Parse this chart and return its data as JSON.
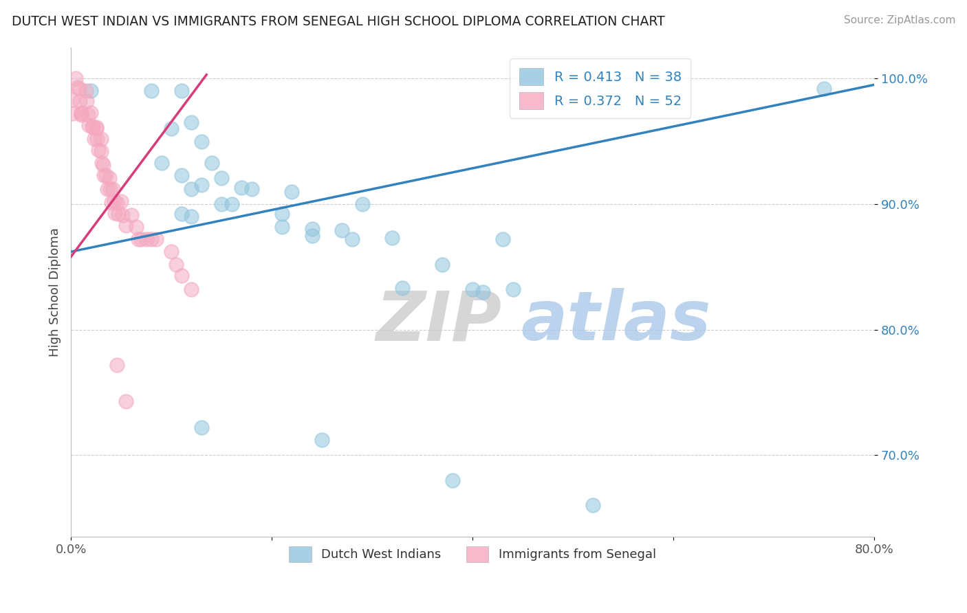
{
  "title": "DUTCH WEST INDIAN VS IMMIGRANTS FROM SENEGAL HIGH SCHOOL DIPLOMA CORRELATION CHART",
  "source": "Source: ZipAtlas.com",
  "xlabel": "",
  "ylabel": "High School Diploma",
  "xlim": [
    0.0,
    0.8
  ],
  "ylim": [
    0.635,
    1.025
  ],
  "xticks": [
    0.0,
    0.2,
    0.4,
    0.6,
    0.8
  ],
  "xticklabels": [
    "0.0%",
    "",
    "",
    "",
    "80.0%"
  ],
  "yticks": [
    0.7,
    0.8,
    0.9,
    1.0
  ],
  "yticklabels": [
    "70.0%",
    "80.0%",
    "90.0%",
    "100.0%"
  ],
  "blue_R": 0.413,
  "blue_N": 38,
  "pink_R": 0.372,
  "pink_N": 52,
  "blue_color": "#92c5de",
  "pink_color": "#f4a9c0",
  "blue_line_color": "#3182bd",
  "pink_line_color": "#d63b7a",
  "background_color": "#ffffff",
  "grid_color": "#cccccc",
  "legend_label_blue": "Dutch West Indians",
  "legend_label_pink": "Immigrants from Senegal",
  "watermark_zip": "ZIP",
  "watermark_atlas": "atlas",
  "blue_scatter_x": [
    0.02,
    0.08,
    0.1,
    0.11,
    0.12,
    0.13,
    0.09,
    0.11,
    0.12,
    0.14,
    0.15,
    0.15,
    0.17,
    0.11,
    0.12,
    0.13,
    0.16,
    0.18,
    0.21,
    0.22,
    0.24,
    0.24,
    0.27,
    0.29,
    0.21,
    0.28,
    0.32,
    0.33,
    0.37,
    0.4,
    0.41,
    0.43,
    0.44,
    0.13,
    0.25,
    0.38,
    0.52,
    0.75
  ],
  "blue_scatter_y": [
    0.99,
    0.99,
    0.96,
    0.99,
    0.965,
    0.95,
    0.933,
    0.923,
    0.912,
    0.933,
    0.921,
    0.9,
    0.913,
    0.892,
    0.89,
    0.915,
    0.9,
    0.912,
    0.892,
    0.91,
    0.875,
    0.88,
    0.879,
    0.9,
    0.882,
    0.872,
    0.873,
    0.833,
    0.852,
    0.832,
    0.83,
    0.872,
    0.832,
    0.722,
    0.712,
    0.68,
    0.66,
    0.992
  ],
  "pink_scatter_x": [
    0.001,
    0.001,
    0.005,
    0.007,
    0.008,
    0.009,
    0.01,
    0.01,
    0.01,
    0.015,
    0.016,
    0.017,
    0.018,
    0.02,
    0.021,
    0.022,
    0.023,
    0.025,
    0.025,
    0.026,
    0.027,
    0.03,
    0.03,
    0.031,
    0.032,
    0.033,
    0.035,
    0.036,
    0.038,
    0.039,
    0.04,
    0.042,
    0.043,
    0.044,
    0.046,
    0.047,
    0.05,
    0.051,
    0.055,
    0.06,
    0.065,
    0.067,
    0.07,
    0.075,
    0.08,
    0.085,
    0.1,
    0.105,
    0.11,
    0.12,
    0.046,
    0.055
  ],
  "pink_scatter_y": [
    0.983,
    0.972,
    1.0,
    0.993,
    0.992,
    0.982,
    0.973,
    0.972,
    0.971,
    0.99,
    0.982,
    0.971,
    0.963,
    0.973,
    0.962,
    0.961,
    0.952,
    0.96,
    0.961,
    0.952,
    0.943,
    0.952,
    0.942,
    0.933,
    0.931,
    0.923,
    0.923,
    0.912,
    0.921,
    0.912,
    0.901,
    0.912,
    0.902,
    0.893,
    0.901,
    0.892,
    0.902,
    0.891,
    0.883,
    0.891,
    0.882,
    0.872,
    0.872,
    0.872,
    0.872,
    0.872,
    0.862,
    0.852,
    0.843,
    0.832,
    0.772,
    0.743
  ],
  "blue_line_x": [
    0.0,
    0.8
  ],
  "blue_line_y": [
    0.862,
    0.995
  ],
  "pink_line_x": [
    0.0,
    0.135
  ],
  "pink_line_y": [
    0.858,
    1.003
  ]
}
